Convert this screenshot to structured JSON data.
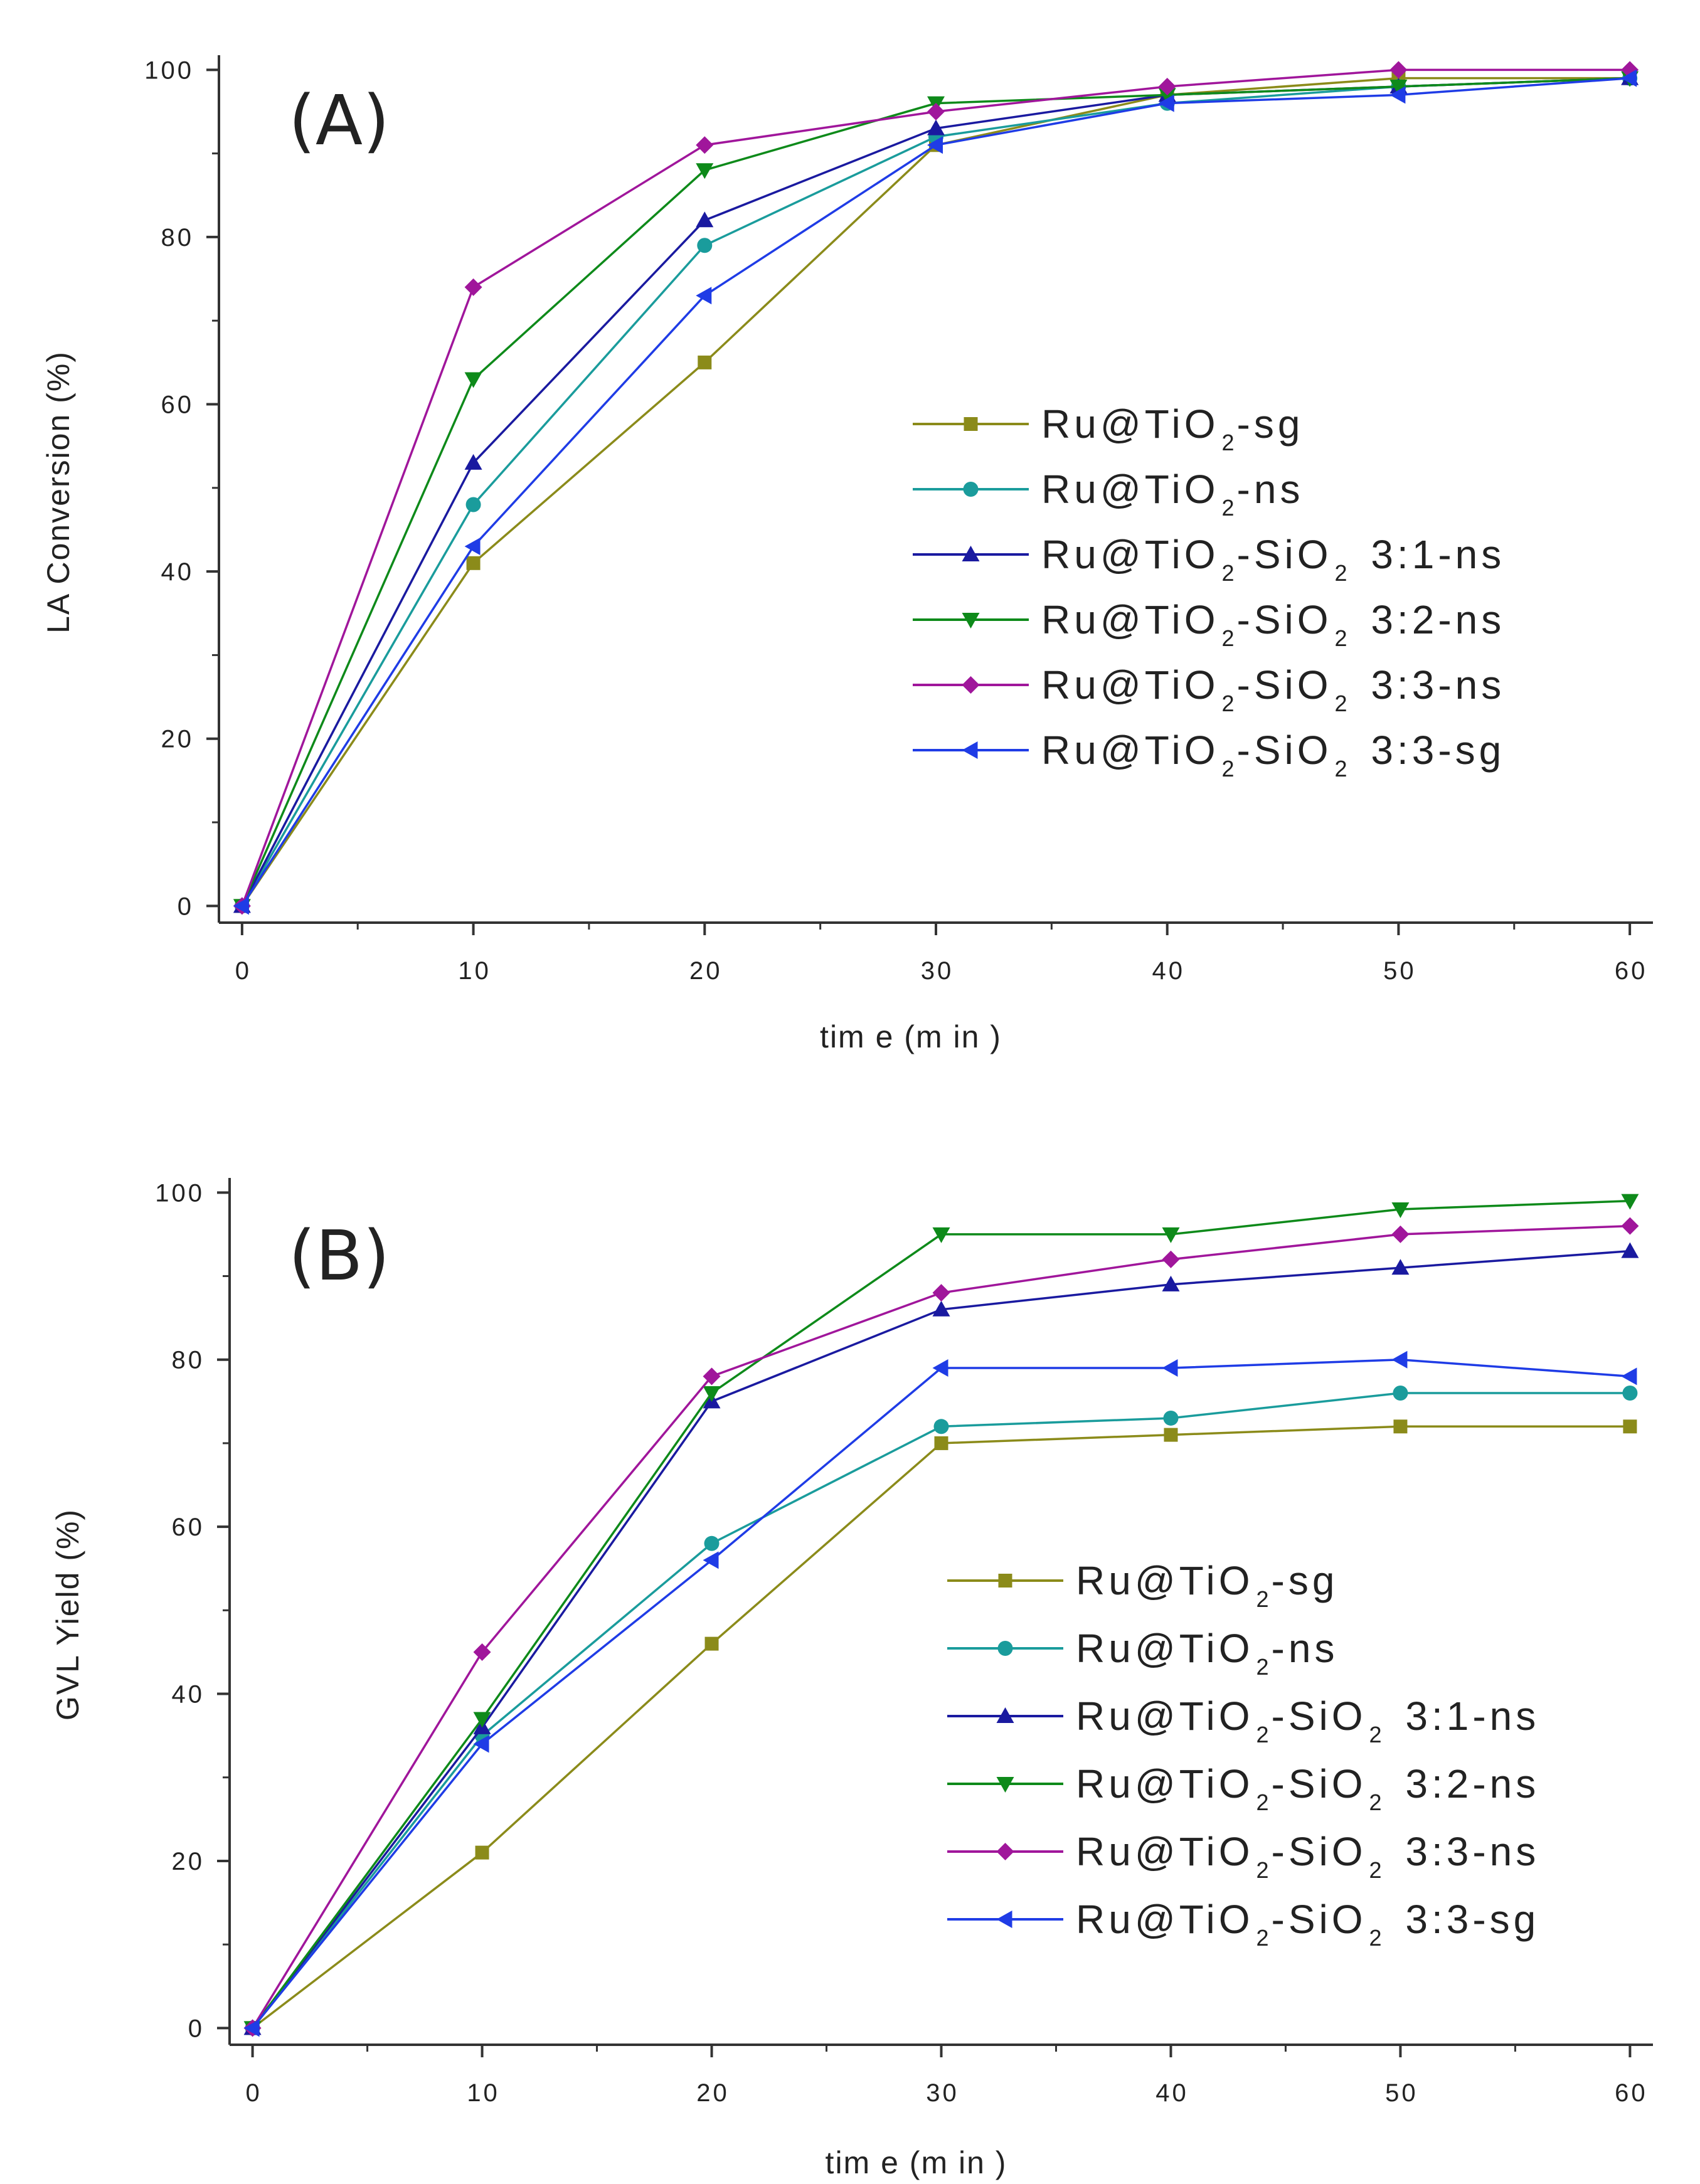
{
  "chart_data": [
    {
      "type": "line",
      "panel_label": "(A)",
      "xlabel": "tim e  (m in )",
      "ylabel": "LA Conversion (%)",
      "xlim": [
        -1,
        61
      ],
      "ylim": [
        -2,
        101
      ],
      "x": [
        0,
        10,
        20,
        30,
        40,
        50,
        60
      ],
      "xticks": [
        "0",
        "10",
        "20",
        "30",
        "40",
        "50",
        "60"
      ],
      "yticks": [
        "0",
        "20",
        "40",
        "60",
        "80",
        "100"
      ],
      "legend_position": "center-right",
      "series": [
        {
          "name": "Ru@TiO2-sg",
          "label_pre": "Ru@TiO",
          "label_sub": "2",
          "label_post": "-sg",
          "color": "#8B8B1A",
          "marker": "square",
          "values": [
            0,
            41,
            65,
            91,
            97,
            99,
            99
          ]
        },
        {
          "name": "Ru@TiO2-ns",
          "label_pre": "Ru@TiO",
          "label_sub": "2",
          "label_post": "-ns",
          "color": "#1A9C9C",
          "marker": "circle",
          "values": [
            0,
            48,
            79,
            92,
            96,
            98,
            99
          ]
        },
        {
          "name": "Ru@TiO2-SiO2 3:1-ns",
          "label_pre": "Ru@TiO",
          "label_sub": "2",
          "label_mid": "-SiO",
          "label_sub2": "2",
          "label_post": " 3:1-ns",
          "color": "#1A1AA0",
          "marker": "triangle-up",
          "values": [
            0,
            53,
            82,
            93,
            97,
            98,
            99
          ]
        },
        {
          "name": "Ru@TiO2-SiO2 3:2-ns",
          "label_pre": "Ru@TiO",
          "label_sub": "2",
          "label_mid": "-SiO",
          "label_sub2": "2",
          "label_post": " 3:2-ns",
          "color": "#0E8A1A",
          "marker": "triangle-down",
          "values": [
            0,
            63,
            88,
            96,
            97,
            98,
            99
          ]
        },
        {
          "name": "Ru@TiO2-SiO2 3:3-ns",
          "label_pre": "Ru@TiO",
          "label_sub": "2",
          "label_mid": "-SiO",
          "label_sub2": "2",
          "label_post": " 3:3-ns",
          "color": "#A0169B",
          "marker": "diamond",
          "values": [
            0,
            74,
            91,
            95,
            98,
            100,
            100
          ]
        },
        {
          "name": "Ru@TiO2-SiO2 3:3-sg",
          "label_pre": "Ru@TiO",
          "label_sub": "2",
          "label_mid": "-SiO",
          "label_sub2": "2",
          "label_post": " 3:3-sg",
          "color": "#1F3CE6",
          "marker": "triangle-left",
          "values": [
            0,
            43,
            73,
            91,
            96,
            97,
            99
          ]
        }
      ]
    },
    {
      "type": "line",
      "panel_label": "(B)",
      "xlabel": "tim e  (m in )",
      "ylabel": "GVL Yield (%)",
      "xlim": [
        -1,
        61
      ],
      "ylim": [
        -2,
        101
      ],
      "x": [
        0,
        10,
        20,
        30,
        40,
        50,
        60
      ],
      "xticks": [
        "0",
        "10",
        "20",
        "30",
        "40",
        "50",
        "60"
      ],
      "yticks": [
        "0",
        "20",
        "40",
        "60",
        "80",
        "100"
      ],
      "legend_position": "center-right",
      "series": [
        {
          "name": "Ru@TiO2-sg",
          "label_pre": "Ru@TiO",
          "label_sub": "2",
          "label_post": "-sg",
          "color": "#8B8B1A",
          "marker": "square",
          "values": [
            0,
            21,
            46,
            70,
            71,
            72,
            72
          ]
        },
        {
          "name": "Ru@TiO2-ns",
          "label_pre": "Ru@TiO",
          "label_sub": "2",
          "label_post": "-ns",
          "color": "#1A9C9C",
          "marker": "circle",
          "values": [
            0,
            35,
            58,
            72,
            73,
            76,
            76
          ]
        },
        {
          "name": "Ru@TiO2-SiO2 3:1-ns",
          "label_pre": "Ru@TiO",
          "label_sub": "2",
          "label_mid": "-SiO",
          "label_sub2": "2",
          "label_post": " 3:1-ns",
          "color": "#1A1AA0",
          "marker": "triangle-up",
          "values": [
            0,
            36,
            75,
            86,
            89,
            91,
            93
          ]
        },
        {
          "name": "Ru@TiO2-SiO2 3:2-ns",
          "label_pre": "Ru@TiO",
          "label_sub": "2",
          "label_mid": "-SiO",
          "label_sub2": "2",
          "label_post": " 3:2-ns",
          "color": "#0E8A1A",
          "marker": "triangle-down",
          "values": [
            0,
            37,
            76,
            95,
            95,
            98,
            99
          ]
        },
        {
          "name": "Ru@TiO2-SiO2 3:3-ns",
          "label_pre": "Ru@TiO",
          "label_sub": "2",
          "label_mid": "-SiO",
          "label_sub2": "2",
          "label_post": " 3:3-ns",
          "color": "#A0169B",
          "marker": "diamond",
          "values": [
            0,
            45,
            78,
            88,
            92,
            95,
            96
          ]
        },
        {
          "name": "Ru@TiO2-SiO2 3:3-sg",
          "label_pre": "Ru@TiO",
          "label_sub": "2",
          "label_mid": "-SiO",
          "label_sub2": "2",
          "label_post": " 3:3-sg",
          "color": "#1F3CE6",
          "marker": "triangle-left",
          "values": [
            0,
            34,
            56,
            79,
            79,
            80,
            78
          ]
        }
      ]
    }
  ]
}
